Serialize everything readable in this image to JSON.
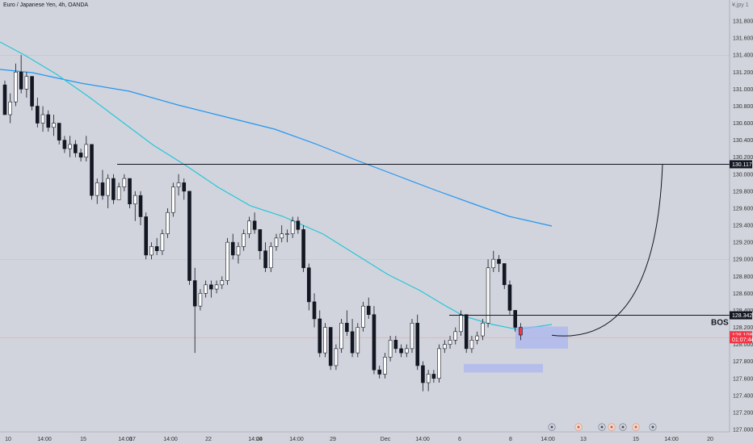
{
  "header": {
    "title": "Euro / Japanese Yen, 4h, OANDA",
    "top_right": "¥,jpy 1"
  },
  "chart_data": {
    "type": "candlestick",
    "title": "Euro / Japanese Yen, 4h, OANDA",
    "price_axis": {
      "ticks": [
        "131.800",
        "131.600",
        "131.400",
        "131.200",
        "131.000",
        "130.800",
        "130.600",
        "130.400",
        "130.200",
        "130.000",
        "129.800",
        "129.600",
        "129.400",
        "129.200",
        "129.000",
        "128.800",
        "128.600",
        "128.400",
        "128.200",
        "128.000",
        "127.800",
        "127.600",
        "127.400",
        "127.200",
        "127.000"
      ],
      "range": [
        127.0,
        132.0
      ]
    },
    "time_axis": {
      "ticks": [
        "10",
        "14:00",
        "15",
        "14:00",
        "17",
        "14:00",
        "22",
        "14:00",
        "24",
        "14:00",
        "29",
        "Dec",
        "14:00",
        "6",
        "8",
        "14:00",
        "13",
        "15",
        "14:00",
        "20"
      ]
    },
    "price_labels": [
      {
        "value": "130.117",
        "price": 130.117,
        "color": "#131722",
        "text_color": "#ffffff"
      },
      {
        "value": "128.342",
        "price": 128.342,
        "color": "#131722",
        "text_color": "#ffffff"
      },
      {
        "value": "128.108",
        "price": 128.108,
        "color": "#f23645",
        "text_color": "#ffffff"
      },
      {
        "value": "01:07:44",
        "price": 128.06,
        "color": "#f23645",
        "text_color": "#ffffff"
      }
    ],
    "annotations": [
      {
        "text": "BOS",
        "price": 128.342
      }
    ],
    "zones": [
      {
        "name": "demand-zone-low",
        "price_top": 127.77,
        "price_bottom": 127.67
      },
      {
        "name": "demand-zone-current",
        "price_top": 128.21,
        "price_bottom": 127.95
      }
    ],
    "colors": {
      "background": "#d1d4dc",
      "bull": "#ffffff",
      "bear": "#131722",
      "ma_fast": "#26c6da",
      "ma_slow": "#2196f3",
      "zone": "#aab4f0",
      "accent_green": "#089981"
    }
  }
}
